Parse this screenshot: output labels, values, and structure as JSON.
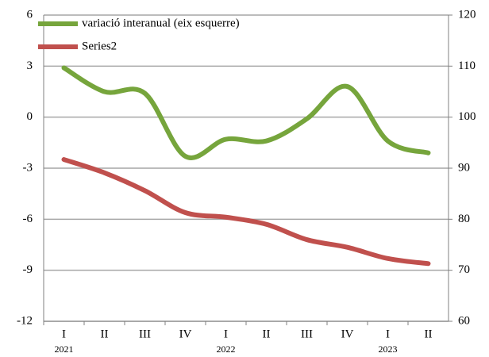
{
  "chart_data": {
    "type": "line",
    "categories": [
      "I",
      "II",
      "III",
      "IV",
      "I",
      "II",
      "III",
      "IV",
      "I",
      "II"
    ],
    "years": [
      "2021",
      null,
      null,
      null,
      "2022",
      null,
      null,
      null,
      "2023",
      null
    ],
    "series": [
      {
        "name": "variació interanual (eix esquerre)",
        "color": "#76a53c",
        "values": [
          2.9,
          1.5,
          1.4,
          -2.3,
          -1.3,
          -1.4,
          -0.1,
          1.8,
          -1.4,
          -2.1
        ]
      },
      {
        "name": "Series2",
        "color": "#c0504d",
        "axis": "y2",
        "values": [
          91.7,
          89.1,
          85.6,
          81.3,
          80.4,
          79.0,
          76.0,
          74.5,
          72.3,
          71.3
        ]
      }
    ],
    "ylim": [
      -12,
      6
    ],
    "yticks": [
      -12,
      -9,
      -6,
      -3,
      0,
      3,
      6
    ],
    "y2lim": [
      60,
      120
    ],
    "y2ticks": [
      60,
      70,
      80,
      90,
      100,
      110,
      120
    ],
    "grid": true,
    "legend": "top-left"
  }
}
